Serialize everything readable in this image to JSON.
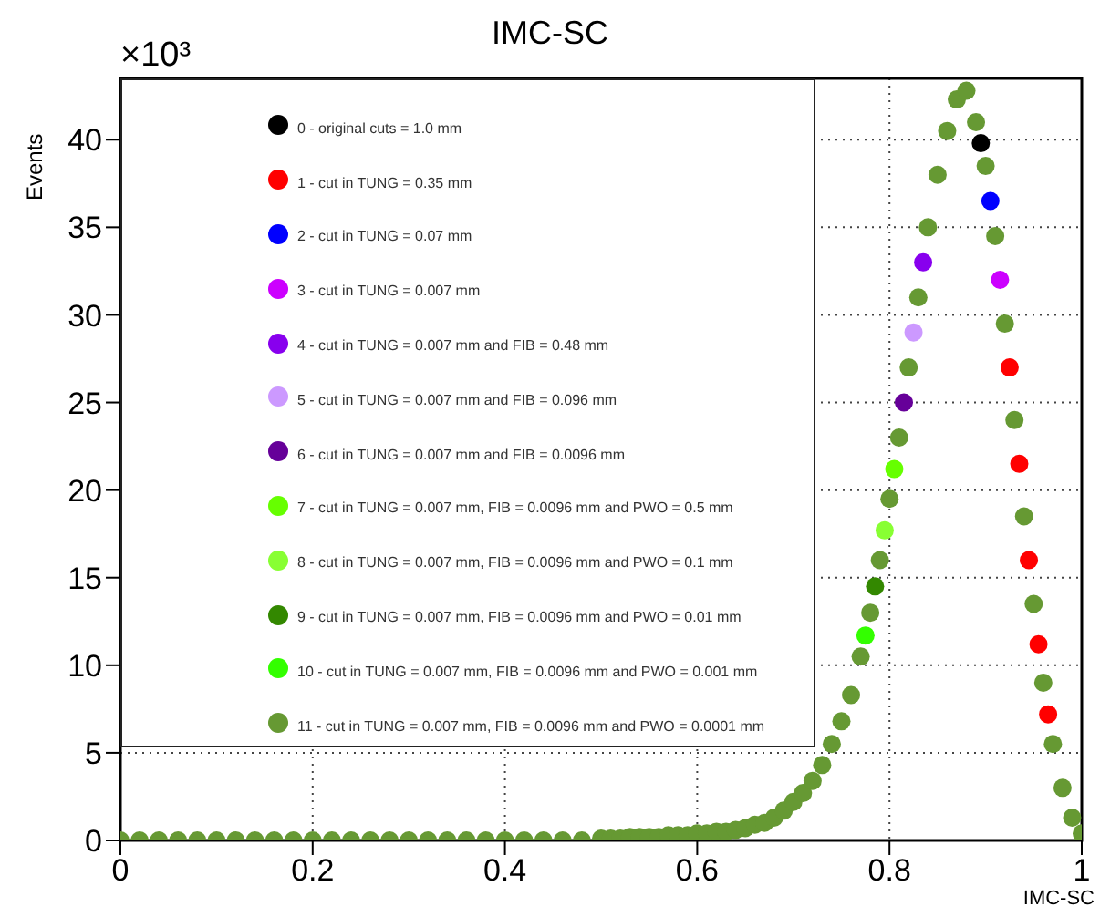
{
  "chart_data": {
    "type": "scatter",
    "title": "IMC-SC",
    "xlabel": "IMC-SC",
    "ylabel": "Events",
    "annotations": [
      "×10³"
    ],
    "x": [
      0,
      0.02,
      0.04,
      0.06,
      0.08,
      0.1,
      0.12,
      0.14,
      0.16,
      0.18,
      0.2,
      0.22,
      0.24,
      0.26,
      0.28,
      0.3,
      0.32,
      0.34,
      0.36,
      0.38,
      0.4,
      0.42,
      0.44,
      0.46,
      0.48,
      0.5,
      0.51,
      0.52,
      0.53,
      0.54,
      0.55,
      0.56,
      0.57,
      0.58,
      0.59,
      0.6,
      0.61,
      0.62,
      0.63,
      0.64,
      0.65,
      0.66,
      0.67,
      0.68,
      0.69,
      0.7,
      0.71,
      0.72,
      0.73,
      0.74,
      0.75,
      0.76,
      0.77,
      0.78,
      0.79,
      0.8,
      0.81,
      0.82,
      0.83,
      0.84,
      0.85,
      0.86,
      0.87,
      0.88,
      0.89,
      0.9,
      0.91,
      0.92,
      0.93,
      0.94,
      0.95,
      0.96,
      0.97,
      0.98,
      0.99,
      1.0
    ],
    "series": [
      {
        "name": "0 - original cuts = 1.0 mm",
        "color": "#000000",
        "x": [
          0.895
        ],
        "values": [
          39.8
        ]
      },
      {
        "name": "1 - cut in TUNG = 0.35 mm",
        "color": "#ff0000",
        "x": [
          0.925,
          0.935,
          0.945,
          0.955,
          0.965
        ],
        "values": [
          27,
          21.5,
          16,
          11.2,
          7.2
        ]
      },
      {
        "name": "2 - cut in TUNG = 0.07 mm",
        "color": "#0000ff",
        "x": [
          0.905
        ],
        "values": [
          36.5
        ]
      },
      {
        "name": "3 - cut in TUNG = 0.007 mm",
        "color": "#cc00ff",
        "x": [
          0.915
        ],
        "values": [
          32
        ]
      },
      {
        "name": "4 - cut in TUNG = 0.007 mm and FIB = 0.48 mm",
        "color": "#8800ee",
        "x": [
          0.835
        ],
        "values": [
          33
        ]
      },
      {
        "name": "5 - cut in TUNG = 0.007 mm and FIB = 0.096 mm",
        "color": "#cc99ff",
        "x": [
          0.825
        ],
        "values": [
          29
        ]
      },
      {
        "name": "6 - cut in TUNG = 0.007 mm and FIB = 0.0096 mm",
        "color": "#660099",
        "x": [
          0.815
        ],
        "values": [
          25
        ]
      },
      {
        "name": "7 - cut in TUNG = 0.007 mm, FIB = 0.0096 mm and PWO = 0.5 mm",
        "color": "#66ff00",
        "x": [
          0.805
        ],
        "values": [
          21.2
        ]
      },
      {
        "name": "8 - cut in TUNG = 0.007 mm, FIB = 0.0096 mm and PWO = 0.1 mm",
        "color": "#88ff33",
        "x": [
          0.795
        ],
        "values": [
          17.7
        ]
      },
      {
        "name": "9 - cut in TUNG = 0.007 mm, FIB = 0.0096 mm and PWO = 0.01 mm",
        "color": "#338800",
        "x": [
          0.785
        ],
        "values": [
          14.5
        ]
      },
      {
        "name": "10 - cut in TUNG = 0.007 mm, FIB = 0.0096 mm and PWO = 0.001 mm",
        "color": "#33ff00",
        "x": [
          0.775
        ],
        "values": [
          11.7
        ]
      },
      {
        "name": "11 - cut in TUNG = 0.007 mm, FIB = 0.0096 mm and PWO = 0.0001 mm",
        "color": "#669933",
        "values": [
          0,
          0,
          0,
          0,
          0,
          0,
          0,
          0,
          0,
          0,
          0,
          0,
          0,
          0,
          0,
          0,
          0,
          0,
          0,
          0,
          0,
          0,
          0,
          0,
          0,
          0.1,
          0.1,
          0.1,
          0.2,
          0.2,
          0.2,
          0.2,
          0.3,
          0.3,
          0.3,
          0.4,
          0.4,
          0.5,
          0.5,
          0.6,
          0.7,
          0.9,
          1.0,
          1.3,
          1.7,
          2.2,
          2.7,
          3.4,
          4.3,
          5.5,
          6.8,
          8.3,
          10.5,
          13,
          16,
          19.5,
          23,
          27,
          31,
          35,
          38,
          40.5,
          42.3,
          42.8,
          41,
          38.5,
          34.5,
          29.5,
          24,
          18.5,
          13.5,
          9,
          5.5,
          3,
          1.3,
          0.4
        ]
      }
    ],
    "xlim": [
      0,
      1
    ],
    "xticks": [
      0,
      0.2,
      0.4,
      0.6,
      0.8,
      1
    ],
    "ylim": [
      0,
      43.5
    ],
    "yticks": [
      0,
      5,
      10,
      15,
      20,
      25,
      30,
      35,
      40
    ],
    "grid": true,
    "legend": "top left",
    "marker": "circle"
  }
}
